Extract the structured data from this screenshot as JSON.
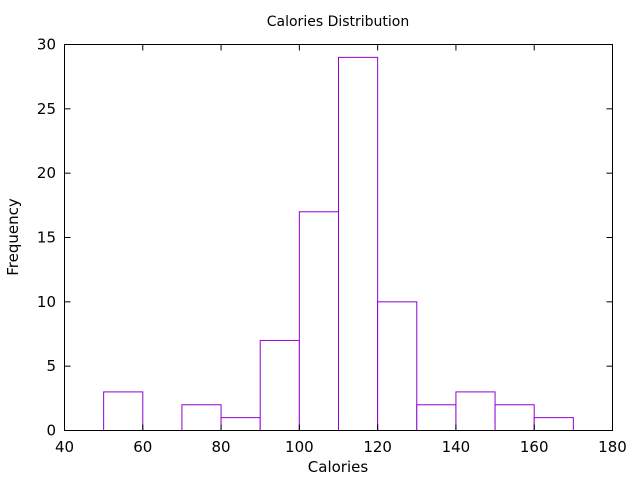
{
  "chart_data": {
    "type": "bar",
    "title": "Calories Distribution",
    "xlabel": "Calories",
    "ylabel": "Frequency",
    "xlim": [
      40,
      180
    ],
    "ylim": [
      0,
      30
    ],
    "x_ticks": [
      "40",
      "60",
      "80",
      "100",
      "120",
      "140",
      "160",
      "180"
    ],
    "y_ticks": [
      "0",
      "5",
      "10",
      "15",
      "20",
      "25",
      "30"
    ],
    "bin_width": 10,
    "bins": [
      {
        "start": 50,
        "end": 60,
        "count": 3
      },
      {
        "start": 70,
        "end": 80,
        "count": 2
      },
      {
        "start": 80,
        "end": 90,
        "count": 1
      },
      {
        "start": 90,
        "end": 100,
        "count": 7
      },
      {
        "start": 100,
        "end": 110,
        "count": 17
      },
      {
        "start": 110,
        "end": 120,
        "count": 29
      },
      {
        "start": 120,
        "end": 130,
        "count": 10
      },
      {
        "start": 130,
        "end": 140,
        "count": 2
      },
      {
        "start": 140,
        "end": 150,
        "count": 3
      },
      {
        "start": 150,
        "end": 160,
        "count": 2
      },
      {
        "start": 160,
        "end": 170,
        "count": 1
      }
    ],
    "bar_color": "#9400d3",
    "bar_fill": "#ffffff",
    "grid": false,
    "legend": "none"
  }
}
